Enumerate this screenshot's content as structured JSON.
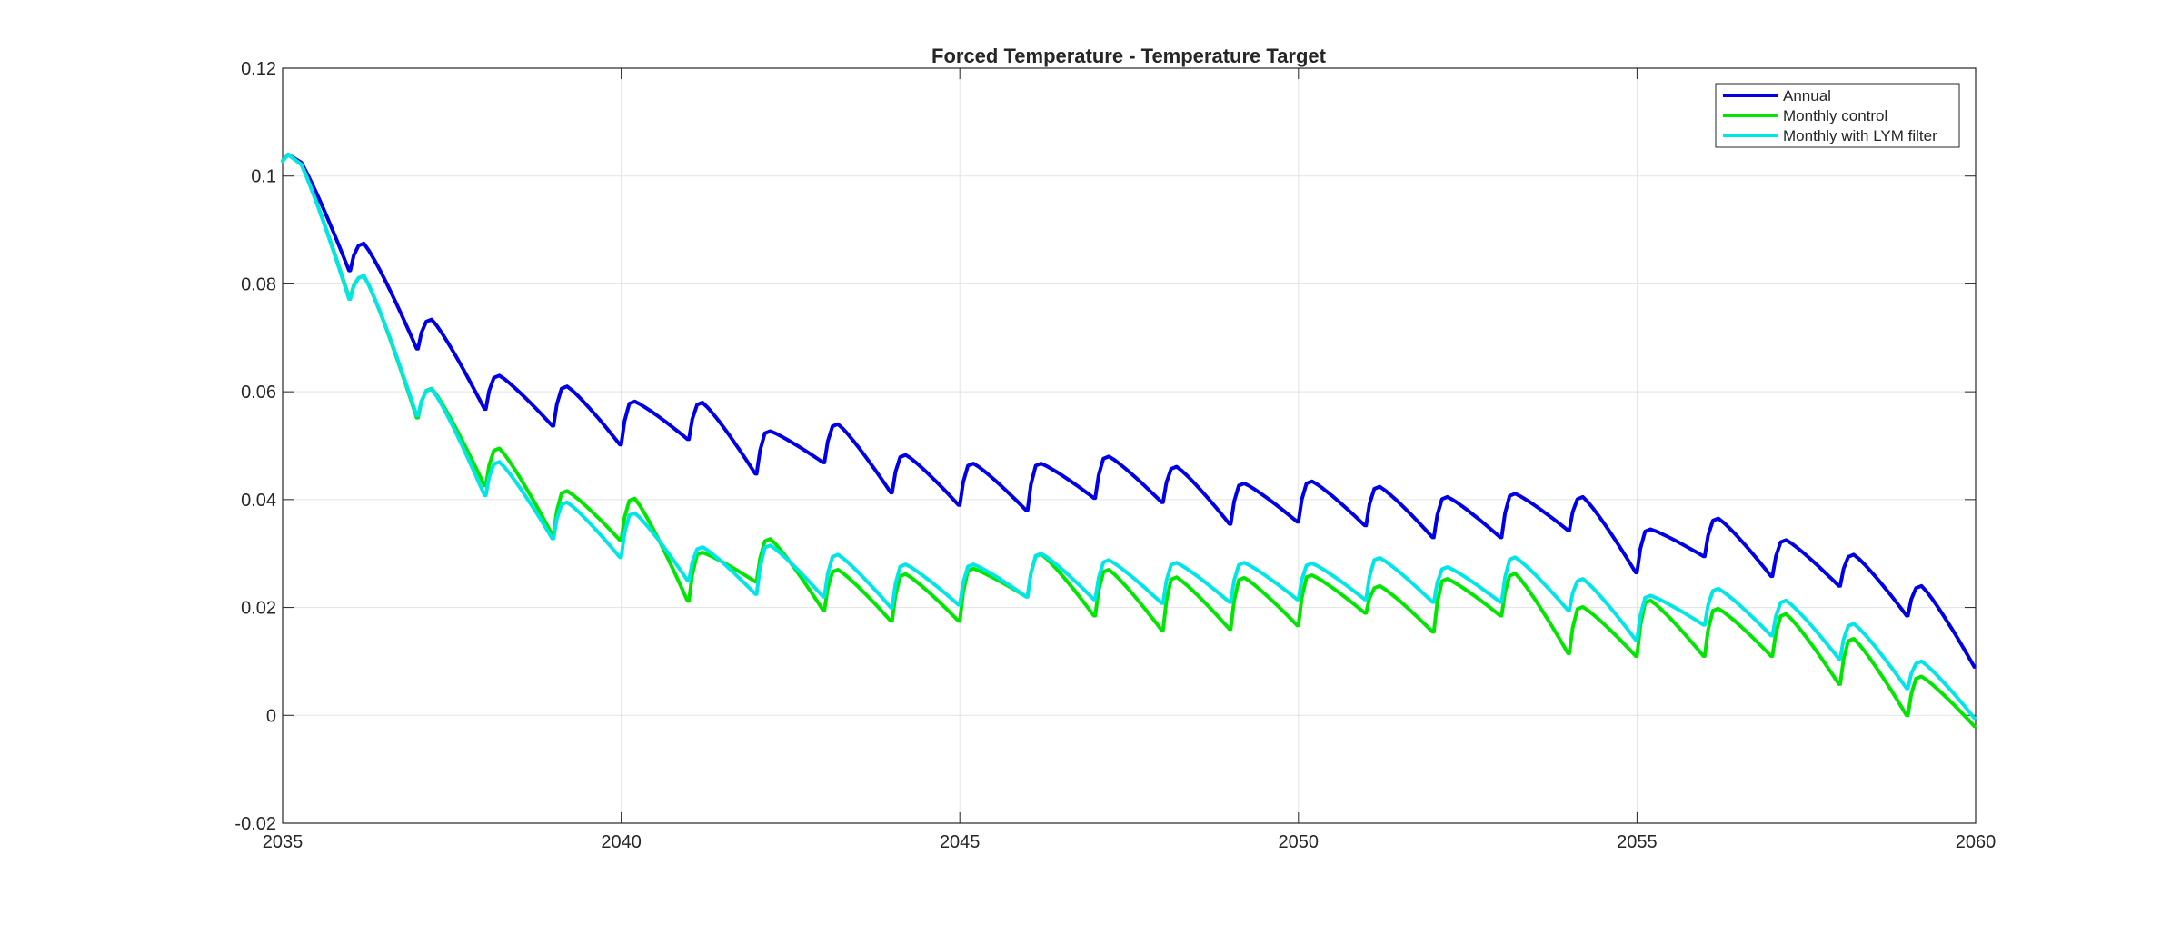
{
  "chart_data": {
    "type": "line",
    "title": "Forced Temperature - Temperature Target",
    "xlabel": "",
    "ylabel": "",
    "xlim": [
      2035,
      2060
    ],
    "ylim": [
      -0.02,
      0.12
    ],
    "xticks": [
      2035,
      2040,
      2045,
      2050,
      2055,
      2060
    ],
    "xtick_labels": [
      "2035",
      "2040",
      "2045",
      "2050",
      "2055",
      "2060"
    ],
    "yticks": [
      -0.02,
      0,
      0.02,
      0.04,
      0.06,
      0.08,
      0.1,
      0.12
    ],
    "ytick_labels": [
      "-0.02",
      "0",
      "0.02",
      "0.04",
      "0.06",
      "0.08",
      "0.1",
      "0.12"
    ],
    "grid": true,
    "legend_position": "top-right",
    "series": [
      {
        "name": "Annual",
        "color": "#0000e6",
        "start_values": [
          0.104,
          0.0875,
          0.0734,
          0.063,
          0.061,
          0.0582,
          0.058,
          0.0527,
          0.054,
          0.0483,
          0.0467,
          0.0467,
          0.048,
          0.0461,
          0.043,
          0.0434,
          0.0424,
          0.0405,
          0.0411,
          0.0405,
          0.0345,
          0.0365,
          0.0325,
          0.0298,
          0.024
        ],
        "end_values": [
          0.0825,
          0.068,
          0.0568,
          0.0537,
          0.0502,
          0.0512,
          0.0448,
          0.0469,
          0.0413,
          0.039,
          0.038,
          0.0403,
          0.0395,
          0.0355,
          0.0359,
          0.0352,
          0.033,
          0.033,
          0.0343,
          0.0265,
          0.0295,
          0.0258,
          0.024,
          0.0185,
          0.009
        ]
      },
      {
        "name": "Monthly control",
        "color": "#00e600",
        "start_values": [
          0.104,
          0.0815,
          0.0606,
          0.0495,
          0.0416,
          0.0402,
          0.0302,
          0.0327,
          0.027,
          0.0262,
          0.0272,
          0.0299,
          0.027,
          0.0256,
          0.0255,
          0.026,
          0.024,
          0.0253,
          0.0263,
          0.0201,
          0.0213,
          0.0198,
          0.0188,
          0.0142,
          0.0072
        ],
        "end_values": [
          0.0775,
          0.0552,
          0.0426,
          0.0335,
          0.0325,
          0.0212,
          0.0248,
          0.0195,
          0.0175,
          0.0175,
          0.022,
          0.0185,
          0.0158,
          0.016,
          0.0167,
          0.019,
          0.0155,
          0.0185,
          0.0115,
          0.011,
          0.011,
          0.011,
          0.0058,
          0.0,
          -0.002
        ]
      },
      {
        "name": "Monthly with LYM filter",
        "color": "#00e6e6",
        "start_values": [
          0.104,
          0.0815,
          0.0605,
          0.047,
          0.0395,
          0.0375,
          0.0312,
          0.0315,
          0.0298,
          0.028,
          0.028,
          0.03,
          0.0288,
          0.0283,
          0.0283,
          0.0282,
          0.0292,
          0.0275,
          0.0293,
          0.0253,
          0.0222,
          0.0235,
          0.0213,
          0.017,
          0.01
        ],
        "end_values": [
          0.0772,
          0.0556,
          0.0408,
          0.0328,
          0.0293,
          0.025,
          0.0225,
          0.022,
          0.02,
          0.0205,
          0.022,
          0.0215,
          0.0208,
          0.021,
          0.0215,
          0.0215,
          0.021,
          0.021,
          0.0195,
          0.014,
          0.0168,
          0.0148,
          0.0105,
          0.005,
          -0.0005
        ]
      }
    ]
  }
}
